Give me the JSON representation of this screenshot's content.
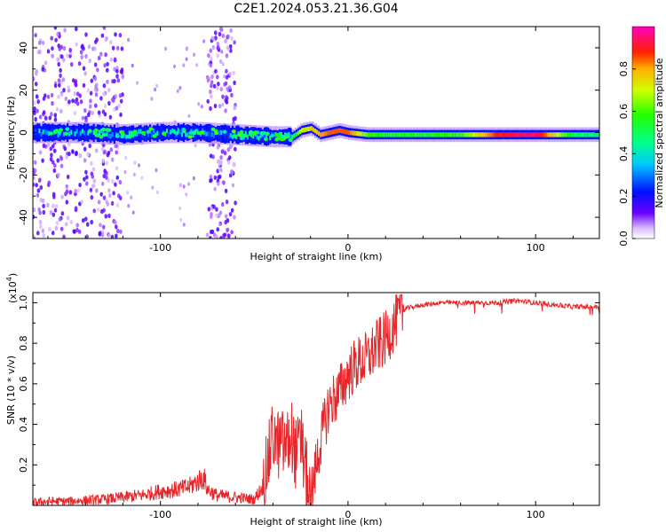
{
  "title": "C2E1.2024.053.21.36.G04",
  "chart_data": [
    {
      "type": "heatmap",
      "xlabel": "Height of straight line (km)",
      "ylabel": "Frequency (Hz)",
      "xlim": [
        -168,
        134
      ],
      "ylim": [
        -50,
        50
      ],
      "xticks": [
        -100,
        0,
        100
      ],
      "xtick_labels": [
        "-100",
        "0",
        "100"
      ],
      "yticks": [
        -40,
        -20,
        0,
        20,
        40
      ],
      "ytick_labels": [
        "-40",
        "-20",
        "0",
        "20",
        "40"
      ],
      "colorbar": {
        "label": "Normalized spectral amplitude",
        "range": [
          0,
          1
        ],
        "ticks": [
          0.0,
          0.2,
          0.4,
          0.6,
          0.8
        ],
        "tick_labels": [
          "0.0",
          "0.2",
          "0.4",
          "0.6",
          "0.8"
        ],
        "colormap": "gist_ncar-like (purple-blue-cyan-green-yellow-red-magenta)"
      },
      "center_line": {
        "x": [
          -168,
          -140,
          -120,
          -100,
          -80,
          -60,
          -40,
          -30,
          -25,
          -20,
          -15,
          -10,
          -5,
          0,
          10,
          20,
          40,
          60,
          80,
          100,
          120,
          134
        ],
        "frequency": [
          0,
          0,
          -1,
          0,
          0,
          -1,
          -2,
          -2,
          1,
          2,
          -1,
          0,
          1,
          0,
          -1,
          -1,
          -1,
          -1,
          -1,
          -1,
          -1,
          -1
        ],
        "amplitude": [
          0.3,
          0.35,
          0.3,
          0.35,
          0.3,
          0.35,
          0.4,
          0.5,
          0.7,
          0.75,
          0.8,
          0.85,
          0.85,
          0.85,
          0.6,
          0.55,
          0.55,
          0.6,
          0.9,
          0.95,
          0.5,
          0.5
        ]
      },
      "scatter_noise_regions_x": [
        [
          -168,
          -120
        ],
        [
          -75,
          -60
        ]
      ]
    },
    {
      "type": "line",
      "xlabel": "Height of straight line (km)",
      "ylabel": "SNR (10 * v/v)",
      "ylabel_scale": "(x10",
      "ylabel_scale_exp": "4",
      "ylabel_scale_close": ")",
      "xlim": [
        -168,
        134
      ],
      "ylim": [
        0,
        1.05
      ],
      "xticks": [
        -100,
        0,
        100
      ],
      "xtick_labels": [
        "-100",
        "0",
        "100"
      ],
      "yticks": [
        0.2,
        0.4,
        0.6,
        0.8,
        1.0
      ],
      "ytick_labels": [
        "0.2",
        "0.4",
        "0.6",
        "0.8",
        "1.0"
      ],
      "color": "#e8262a",
      "series": [
        {
          "x": [
            -168,
            -160,
            -150,
            -140,
            -130,
            -120,
            -110,
            -100,
            -90,
            -85,
            -80,
            -77,
            -75,
            -70,
            -60,
            -50,
            -45,
            -42,
            -40,
            -38,
            -35,
            -32,
            -30,
            -28,
            -25,
            -20,
            -15,
            -10,
            -5,
            0,
            5,
            10,
            15,
            20,
            25,
            30,
            40,
            50,
            60,
            70,
            80,
            90,
            100,
            110,
            120,
            134
          ],
          "y": [
            0.015,
            0.02,
            0.02,
            0.025,
            0.03,
            0.04,
            0.05,
            0.07,
            0.08,
            0.09,
            0.12,
            0.14,
            0.08,
            0.05,
            0.04,
            0.03,
            0.1,
            0.25,
            0.35,
            0.3,
            0.3,
            0.3,
            0.35,
            0.25,
            0.3,
            0.03,
            0.3,
            0.5,
            0.55,
            0.65,
            0.7,
            0.72,
            0.78,
            0.82,
            0.9,
            0.97,
            0.99,
            1.0,
            1.0,
            1.0,
            1.0,
            1.01,
            1.0,
            0.99,
            0.98,
            0.98
          ]
        }
      ]
    }
  ]
}
